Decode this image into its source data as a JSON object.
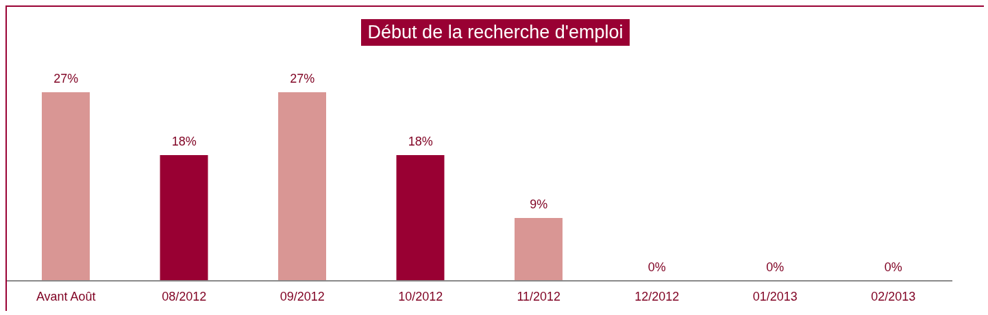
{
  "chart_data": {
    "type": "bar",
    "title": "Début de la recherche d'emploi",
    "categories": [
      "Avant Août",
      "08/2012",
      "09/2012",
      "10/2012",
      "11/2012",
      "12/2012",
      "01/2013",
      "02/2013"
    ],
    "values": [
      27,
      18,
      27,
      18,
      9,
      0,
      0,
      0
    ],
    "value_labels": [
      "27%",
      "18%",
      "27%",
      "18%",
      "9%",
      "0%",
      "0%",
      "0%"
    ],
    "colors": [
      "#d99694",
      "#990033",
      "#d99694",
      "#990033",
      "#d99694",
      "#990033",
      "#d99694",
      "#990033"
    ],
    "grid": false,
    "legend": false
  }
}
